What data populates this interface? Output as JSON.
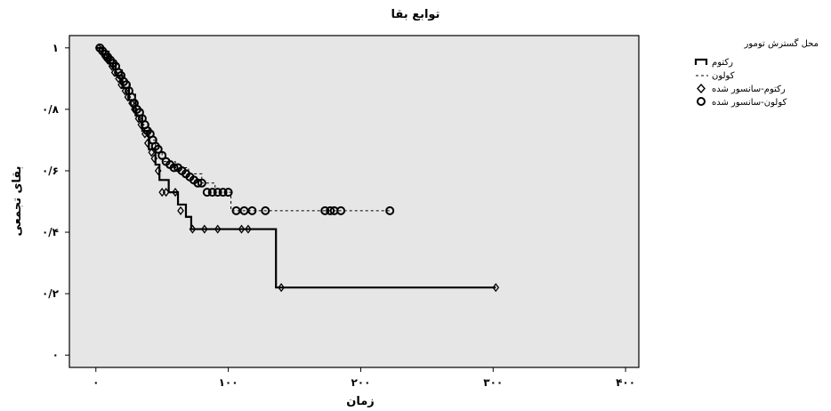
{
  "chart_data": {
    "type": "line",
    "title": "توابع بقا",
    "xlabel": "زمان",
    "ylabel": "بقای تجمعی",
    "xlim": [
      -20,
      410
    ],
    "ylim": [
      -0.04,
      1.04
    ],
    "x_ticks": [
      {
        "value": 0,
        "label": "۰"
      },
      {
        "value": 100,
        "label": "۱۰۰"
      },
      {
        "value": 200,
        "label": "۲۰۰"
      },
      {
        "value": 300,
        "label": "۳۰۰"
      },
      {
        "value": 400,
        "label": "۴۰۰"
      }
    ],
    "y_ticks": [
      {
        "value": 0,
        "label": "۰"
      },
      {
        "value": 0.2,
        "label": "۰/۲"
      },
      {
        "value": 0.4,
        "label": "۰/۴"
      },
      {
        "value": 0.6,
        "label": "۰/۶"
      },
      {
        "value": 0.8,
        "label": "۰/۸"
      },
      {
        "value": 1,
        "label": "۱"
      }
    ],
    "grid": false,
    "legend": {
      "title": "محل گسترش تومور",
      "placement": "right",
      "entries": [
        {
          "label": "رکتوم",
          "symbol": "step-line"
        },
        {
          "label": "کولون",
          "symbol": "dashed-line"
        },
        {
          "label": "رکتوم-سانسور شده",
          "symbol": "diamond"
        },
        {
          "label": "کولون-سانسور شده",
          "symbol": "circle"
        }
      ]
    },
    "series": [
      {
        "name": "رکتوم",
        "style": "solid",
        "steps": [
          [
            0,
            1.0
          ],
          [
            5,
            0.98
          ],
          [
            10,
            0.95
          ],
          [
            15,
            0.91
          ],
          [
            20,
            0.87
          ],
          [
            25,
            0.83
          ],
          [
            30,
            0.78
          ],
          [
            35,
            0.73
          ],
          [
            40,
            0.67
          ],
          [
            45,
            0.62
          ],
          [
            48,
            0.57
          ],
          [
            55,
            0.53
          ],
          [
            62,
            0.49
          ],
          [
            68,
            0.45
          ],
          [
            72,
            0.41
          ],
          [
            136,
            0.22
          ],
          [
            302,
            0.22
          ]
        ],
        "censored": [
          [
            2,
            1.0
          ],
          [
            4,
            0.99
          ],
          [
            7,
            0.97
          ],
          [
            9,
            0.96
          ],
          [
            12,
            0.94
          ],
          [
            14,
            0.92
          ],
          [
            17,
            0.9
          ],
          [
            19,
            0.88
          ],
          [
            22,
            0.86
          ],
          [
            24,
            0.84
          ],
          [
            27,
            0.82
          ],
          [
            29,
            0.8
          ],
          [
            32,
            0.77
          ],
          [
            34,
            0.75
          ],
          [
            37,
            0.72
          ],
          [
            39,
            0.69
          ],
          [
            42,
            0.66
          ],
          [
            44,
            0.64
          ],
          [
            47,
            0.6
          ],
          [
            50,
            0.53
          ],
          [
            53,
            0.53
          ],
          [
            60,
            0.53
          ],
          [
            64,
            0.47
          ],
          [
            73,
            0.41
          ],
          [
            82,
            0.41
          ],
          [
            92,
            0.41
          ],
          [
            110,
            0.41
          ],
          [
            115,
            0.41
          ],
          [
            140,
            0.22
          ],
          [
            302,
            0.22
          ]
        ]
      },
      {
        "name": "کولون",
        "style": "dashed",
        "steps": [
          [
            0,
            1.0
          ],
          [
            5,
            0.99
          ],
          [
            10,
            0.96
          ],
          [
            15,
            0.93
          ],
          [
            20,
            0.89
          ],
          [
            25,
            0.85
          ],
          [
            30,
            0.8
          ],
          [
            35,
            0.75
          ],
          [
            40,
            0.7
          ],
          [
            45,
            0.66
          ],
          [
            50,
            0.63
          ],
          [
            60,
            0.61
          ],
          [
            70,
            0.59
          ],
          [
            80,
            0.56
          ],
          [
            90,
            0.53
          ],
          [
            102,
            0.47
          ],
          [
            222,
            0.47
          ]
        ],
        "censored": [
          [
            3,
            1.0
          ],
          [
            5,
            0.99
          ],
          [
            7,
            0.98
          ],
          [
            9,
            0.97
          ],
          [
            11,
            0.96
          ],
          [
            13,
            0.95
          ],
          [
            15,
            0.94
          ],
          [
            17,
            0.92
          ],
          [
            19,
            0.91
          ],
          [
            21,
            0.89
          ],
          [
            23,
            0.88
          ],
          [
            25,
            0.86
          ],
          [
            27,
            0.84
          ],
          [
            29,
            0.82
          ],
          [
            31,
            0.8
          ],
          [
            33,
            0.79
          ],
          [
            35,
            0.77
          ],
          [
            37,
            0.75
          ],
          [
            39,
            0.73
          ],
          [
            41,
            0.72
          ],
          [
            43,
            0.7
          ],
          [
            45,
            0.68
          ],
          [
            47,
            0.67
          ],
          [
            50,
            0.65
          ],
          [
            53,
            0.63
          ],
          [
            56,
            0.62
          ],
          [
            59,
            0.61
          ],
          [
            62,
            0.61
          ],
          [
            65,
            0.6
          ],
          [
            68,
            0.59
          ],
          [
            71,
            0.58
          ],
          [
            74,
            0.57
          ],
          [
            77,
            0.56
          ],
          [
            80,
            0.56
          ],
          [
            84,
            0.53
          ],
          [
            88,
            0.53
          ],
          [
            92,
            0.53
          ],
          [
            96,
            0.53
          ],
          [
            100,
            0.53
          ],
          [
            106,
            0.47
          ],
          [
            112,
            0.47
          ],
          [
            118,
            0.47
          ],
          [
            128,
            0.47
          ],
          [
            173,
            0.47
          ],
          [
            177,
            0.47
          ],
          [
            180,
            0.47
          ],
          [
            185,
            0.47
          ],
          [
            222,
            0.47
          ]
        ]
      }
    ]
  }
}
